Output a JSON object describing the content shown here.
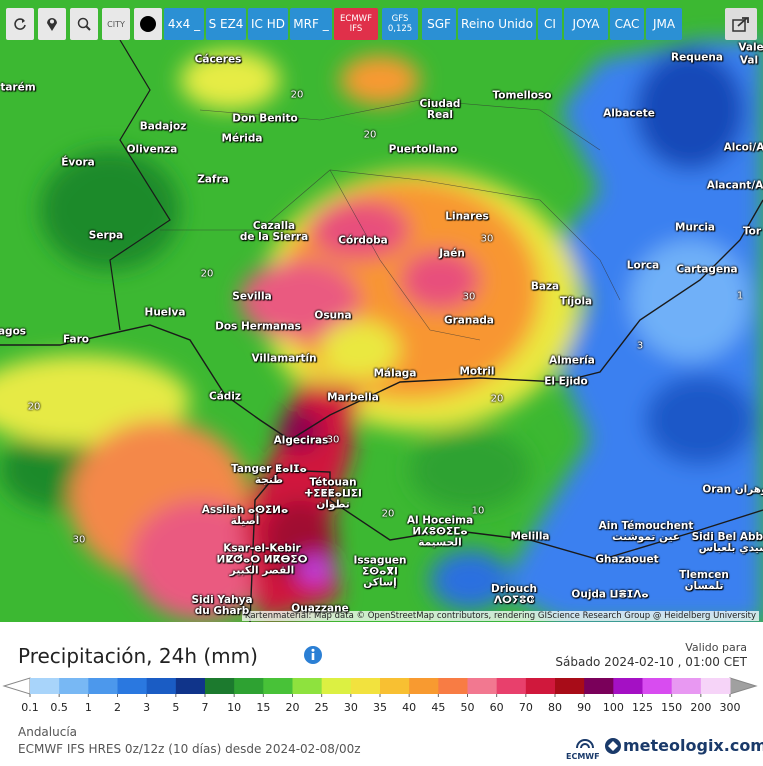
{
  "toolbar": {
    "city_icon": "CITY",
    "buttons": [
      "4x4 _",
      "S EZ4",
      "IC HD",
      "MRF _",
      "ECMWF IFS",
      "GFS 0,125",
      "SGF",
      "Reino Unido",
      "CI",
      "JOYA",
      "CAC",
      "JMA"
    ]
  },
  "map": {
    "labels": [
      "Cáceres",
      "Requena",
      "Vale",
      "Val",
      "tarém",
      "Tomelloso",
      "Ciudad\nReal",
      "Don Benito",
      "Badajoz",
      "Albacete",
      "Mérida",
      "Olivenza",
      "Puertollano",
      "Alcoi/A",
      "Évora",
      "Zafra",
      "Alacant/A",
      "Linares",
      "Cazalla\nde la Sierra",
      "Murcia",
      "Serpa",
      "Córdoba",
      "Tor",
      "Jaén",
      "Lorca",
      "Cartagena",
      "Baza",
      "Sevilla",
      "Tíjola",
      "Huelva",
      "Osuna",
      "Granada",
      "agos",
      "Dos Hermanas",
      "Faro",
      "Villamartín",
      "Almería",
      "Málaga",
      "Motril",
      "El Ejido",
      "Cádiz",
      "Marbella",
      "Algeciras",
      "Tanger ⵟⴰⵏⵊⴰ\nطنجة",
      "Tétouan\nⵜⵉⵟⵟⴰⵡⵉⵏ\nتطوان",
      "Oran وهران",
      "Assilah ⴰⵙⵉⵍⴰ\nأصيلة",
      "Al Hoceima\nⵍⵃⵓⵙⵉⵎⴰ\nالحسيمة",
      "Ain Témouchent\nعين تموشنت",
      "Melilla",
      "Sidi Bel Abbès\nسيدي بلعباس",
      "Ksar-el-Kebir\nⵍⵇⵚⴰⵔ ⵍⴽⴱⵉⵔ\nالقصر الكبير",
      "Issaguen\nⵉⵙⴰⴳⵏ\nإساكن",
      "Ghazaouet",
      "Tlemcen\nتلمسان",
      "Driouch\nⴷⵔⵢⵓⵛ",
      "Oujda ⵡⴻⵊⴷⴰ",
      "Sidi Yahya\ndu Gharb",
      "Ouazzane"
    ],
    "contours": [
      20,
      20,
      20,
      20,
      20,
      20,
      30,
      30,
      30,
      30,
      10,
      3,
      1
    ],
    "attribution": "Kartenmaterial: Map data © OpenStreetMap contributors, rendering GIScience Research Group @ Heidelberg University"
  },
  "footer": {
    "title": "Precipitación, 24h (mm)",
    "valid_label": "Valido para",
    "valid_time": "Sábado 2024-02-10 , 01:00 CET",
    "legend": {
      "values": [
        0.1,
        0.5,
        1,
        2,
        3,
        5,
        7,
        10,
        15,
        20,
        25,
        30,
        35,
        40,
        45,
        50,
        60,
        70,
        80,
        90,
        100,
        125,
        150,
        200,
        300
      ],
      "colors": [
        "#a8d4fa",
        "#78b8f4",
        "#4c98ec",
        "#2a78e0",
        "#1a5cc4",
        "#10348a",
        "#1c7a2e",
        "#2ea232",
        "#48c238",
        "#8ee23e",
        "#dcf042",
        "#f2e23e",
        "#f8c032",
        "#f89a30",
        "#f87c44",
        "#f27890",
        "#e8406c",
        "#d0183c",
        "#a80c18",
        "#7a005a",
        "#a410c4",
        "#d84cf0",
        "#e898f2",
        "#f6d4f8"
      ],
      "low_color": "#ffffff",
      "high_color": "#a0a0a0"
    },
    "region": "Andalucía",
    "model": "ECMWF IFS HRES 0z/12z (10 días) desde 2024-02-08/00z",
    "logo_small": "ECMWF",
    "brand": "meteologix.com"
  }
}
